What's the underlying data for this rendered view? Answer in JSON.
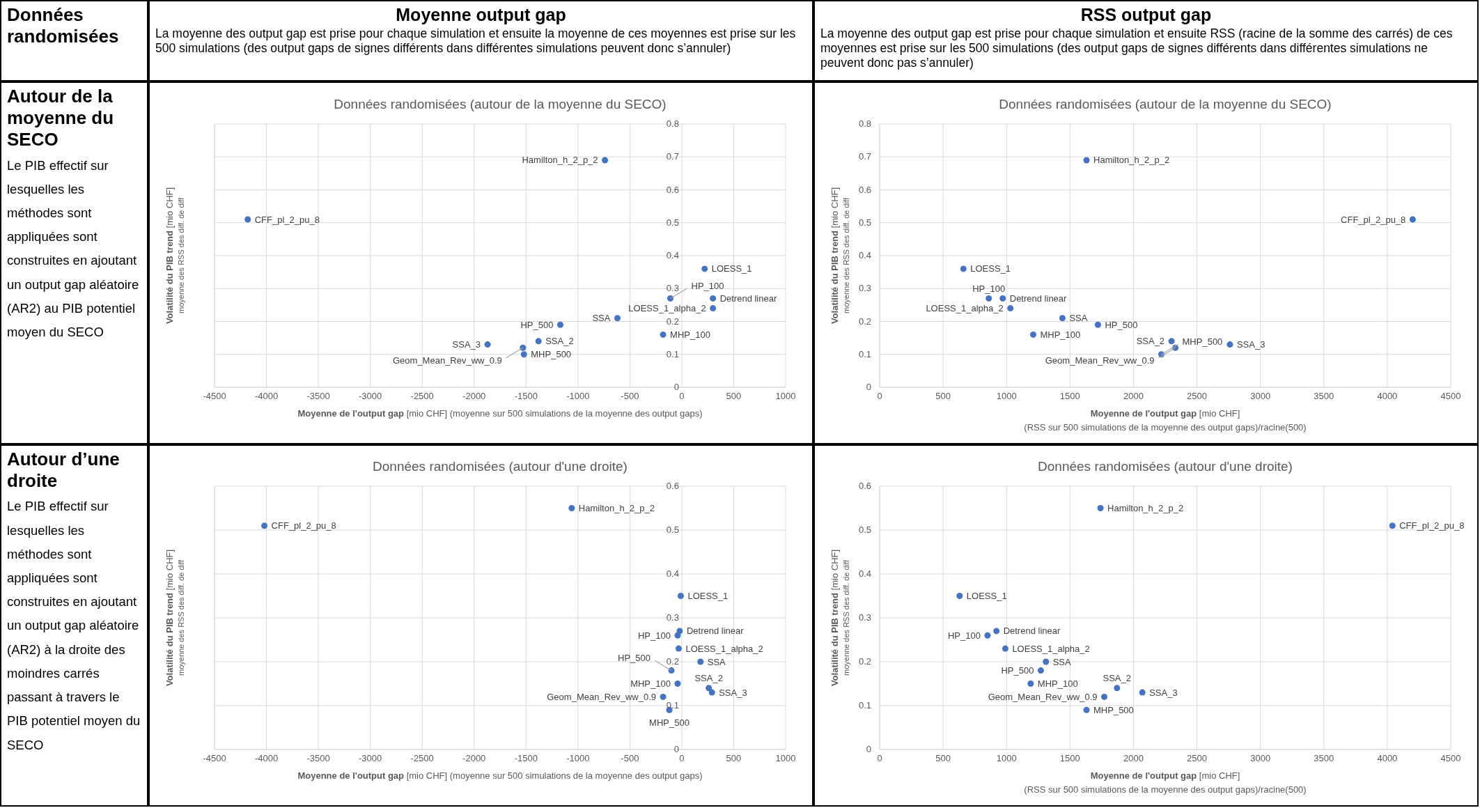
{
  "chart_data": [
    {
      "type": "other",
      "title": "Données randomisées"
    },
    {
      "type": "other",
      "title": "Moyenne output gap",
      "subtitle": "La moyenne des output gap est prise pour chaque simulation et ensuite la moyenne de ces moyennes est prise sur les 500 simulations (des output gaps de signes différents dans différentes simulations peuvent donc s’annuler)"
    },
    {
      "type": "other",
      "title": "RSS output gap",
      "subtitle": "La moyenne des output gap est prise pour chaque simulation et ensuite RSS (racine de la somme des carrés) de ces moyennes est prise sur les 500 simulations (des output gaps de signes différents dans différentes simulations ne peuvent donc pas s’annuler)"
    },
    {
      "type": "other",
      "title": "Autour de la moyenne du SECO",
      "subtitle": "Le PIB effectif sur lesquelles les méthodes sont appliquées sont construites en ajoutant un output gap aléatoire (AR2) au PIB potentiel moyen du SECO"
    },
    {
      "type": "scatter",
      "title": "Données randomisées (autour de la moyenne du SECO)",
      "xlabel": "Moyenne de l'output gap [mio CHF] (moyenne sur 500 simulations de la moyenne des output gaps)",
      "ylabel": "Volatilité du PIB trend [mio CHF]\nmoyenne des RSS des diff. de diff",
      "xlim": [
        -4500,
        1000
      ],
      "xticks": [
        -4500,
        -4000,
        -3500,
        -3000,
        -2500,
        -2000,
        -1500,
        -1000,
        -500,
        0,
        500,
        1000
      ],
      "ylim": [
        0,
        0.8
      ],
      "yticks": [
        0,
        0.1,
        0.2,
        0.3,
        0.4,
        0.5,
        0.6,
        0.7,
        0.8
      ],
      "grid": true,
      "marker": "circle",
      "series": [
        {
          "name": "CFF_pl_2_pu_8",
          "color": "#4472c4",
          "x": [
            -4180
          ],
          "values": [
            0.51
          ]
        },
        {
          "name": "Hamilton_h_2_p_2",
          "color": "#4472c4",
          "x": [
            -740
          ],
          "values": [
            0.69
          ]
        },
        {
          "name": "LOESS_1",
          "color": "#4472c4",
          "x": [
            220
          ],
          "values": [
            0.36
          ]
        },
        {
          "name": "Detrend linear",
          "color": "#4472c4",
          "x": [
            300
          ],
          "values": [
            0.27
          ]
        },
        {
          "name": "LOESS_1_alpha_2",
          "color": "#4472c4",
          "x": [
            300
          ],
          "values": [
            0.24
          ]
        },
        {
          "name": "HP_100",
          "color": "#4472c4",
          "x": [
            -110
          ],
          "values": [
            0.27
          ]
        },
        {
          "name": "MHP_100",
          "color": "#4472c4",
          "x": [
            -180
          ],
          "values": [
            0.16
          ]
        },
        {
          "name": "SSA",
          "color": "#4472c4",
          "x": [
            -620
          ],
          "values": [
            0.21
          ]
        },
        {
          "name": "HP_500",
          "color": "#4472c4",
          "x": [
            -1170
          ],
          "values": [
            0.19
          ]
        },
        {
          "name": "SSA_2",
          "color": "#4472c4",
          "x": [
            -1380
          ],
          "values": [
            0.14
          ]
        },
        {
          "name": "Geom_Mean_Rev_ww_0.9",
          "color": "#4472c4",
          "x": [
            -1530
          ],
          "values": [
            0.12
          ]
        },
        {
          "name": "MHP_500",
          "color": "#4472c4",
          "x": [
            -1520
          ],
          "values": [
            0.1
          ]
        },
        {
          "name": "SSA_3",
          "color": "#4472c4",
          "x": [
            -1870
          ],
          "values": [
            0.13
          ]
        }
      ]
    },
    {
      "type": "scatter",
      "title": "Données randomisées (autour de la moyenne du SECO)",
      "xlabel": "Moyenne de l'output gap [mio CHF]\n(RSS sur 500 simulations de la moyenne des output gaps)/racine(500)",
      "ylabel": "Volatilité du PIB trend [mio CHF]\nmoyenne des RSS des diff. de diff",
      "xlim": [
        0,
        4500
      ],
      "xticks": [
        0,
        500,
        1000,
        1500,
        2000,
        2500,
        3000,
        3500,
        4000,
        4500
      ],
      "ylim": [
        0,
        0.8
      ],
      "yticks": [
        0,
        0.1,
        0.2,
        0.3,
        0.4,
        0.5,
        0.6,
        0.7,
        0.8
      ],
      "grid": true,
      "marker": "circle",
      "series": [
        {
          "name": "CFF_pl_2_pu_8",
          "color": "#4472c4",
          "x": [
            4200
          ],
          "values": [
            0.51
          ]
        },
        {
          "name": "Hamilton_h_2_p_2",
          "color": "#4472c4",
          "x": [
            1630
          ],
          "values": [
            0.69
          ]
        },
        {
          "name": "LOESS_1",
          "color": "#4472c4",
          "x": [
            660
          ],
          "values": [
            0.36
          ]
        },
        {
          "name": "Detrend linear",
          "color": "#4472c4",
          "x": [
            970
          ],
          "values": [
            0.27
          ]
        },
        {
          "name": "LOESS_1_alpha_2",
          "color": "#4472c4",
          "x": [
            1030
          ],
          "values": [
            0.24
          ]
        },
        {
          "name": "HP_100",
          "color": "#4472c4",
          "x": [
            860
          ],
          "values": [
            0.27
          ]
        },
        {
          "name": "MHP_100",
          "color": "#4472c4",
          "x": [
            1210
          ],
          "values": [
            0.16
          ]
        },
        {
          "name": "SSA",
          "color": "#4472c4",
          "x": [
            1440
          ],
          "values": [
            0.21
          ]
        },
        {
          "name": "HP_500",
          "color": "#4472c4",
          "x": [
            1720
          ],
          "values": [
            0.19
          ]
        },
        {
          "name": "SSA_2",
          "color": "#4472c4",
          "x": [
            2300
          ],
          "values": [
            0.14
          ]
        },
        {
          "name": "Geom_Mean_Rev_ww_0.9",
          "color": "#4472c4",
          "x": [
            2330
          ],
          "values": [
            0.12
          ]
        },
        {
          "name": "MHP_500",
          "color": "#4472c4",
          "x": [
            2220
          ],
          "values": [
            0.1
          ]
        },
        {
          "name": "SSA_3",
          "color": "#4472c4",
          "x": [
            2760
          ],
          "values": [
            0.13
          ]
        }
      ]
    },
    {
      "type": "other",
      "title": "Autour d’une droite",
      "subtitle": "Le PIB effectif sur lesquelles les méthodes sont appliquées sont construites en ajoutant un output gap aléatoire (AR2) à la droite des moindres carrés passant à travers le PIB potentiel moyen du SECO"
    },
    {
      "type": "scatter",
      "title": "Données randomisées (autour d'une droite)",
      "xlabel": "Moyenne de l'output gap [mio CHF] (moyenne sur 500 simulations de la moyenne des output gaps)",
      "ylabel": "Volatilité du PIB trend [mio CHF]\nmoyenne des RSS des diff. de diff",
      "xlim": [
        -4500,
        1000
      ],
      "xticks": [
        -4500,
        -4000,
        -3500,
        -3000,
        -2500,
        -2000,
        -1500,
        -1000,
        -500,
        0,
        500,
        1000
      ],
      "ylim": [
        0,
        0.6
      ],
      "yticks": [
        0,
        0.1,
        0.2,
        0.3,
        0.4,
        0.5,
        0.6
      ],
      "grid": true,
      "marker": "circle",
      "series": [
        {
          "name": "CFF_pl_2_pu_8",
          "color": "#4472c4",
          "x": [
            -4020
          ],
          "values": [
            0.51
          ]
        },
        {
          "name": "Hamilton_h_2_p_2",
          "color": "#4472c4",
          "x": [
            -1060
          ],
          "values": [
            0.55
          ]
        },
        {
          "name": "LOESS_1",
          "color": "#4472c4",
          "x": [
            -10
          ],
          "values": [
            0.35
          ]
        },
        {
          "name": "Detrend linear",
          "color": "#4472c4",
          "x": [
            -20
          ],
          "values": [
            0.27
          ]
        },
        {
          "name": "LOESS_1_alpha_2",
          "color": "#4472c4",
          "x": [
            -30
          ],
          "values": [
            0.23
          ]
        },
        {
          "name": "HP_100",
          "color": "#4472c4",
          "x": [
            -40
          ],
          "values": [
            0.26
          ]
        },
        {
          "name": "MHP_100",
          "color": "#4472c4",
          "x": [
            -40
          ],
          "values": [
            0.15
          ]
        },
        {
          "name": "SSA",
          "color": "#4472c4",
          "x": [
            180
          ],
          "values": [
            0.2
          ]
        },
        {
          "name": "HP_500",
          "color": "#4472c4",
          "x": [
            -100
          ],
          "values": [
            0.18
          ]
        },
        {
          "name": "SSA_2",
          "color": "#4472c4",
          "x": [
            260
          ],
          "values": [
            0.14
          ]
        },
        {
          "name": "Geom_Mean_Rev_ww_0.9",
          "color": "#4472c4",
          "x": [
            -180
          ],
          "values": [
            0.12
          ]
        },
        {
          "name": "MHP_500",
          "color": "#4472c4",
          "x": [
            -120
          ],
          "values": [
            0.09
          ]
        },
        {
          "name": "SSA_3",
          "color": "#4472c4",
          "x": [
            290
          ],
          "values": [
            0.13
          ]
        }
      ]
    },
    {
      "type": "scatter",
      "title": "Données randomisées (autour d'une droite)",
      "xlabel": "Moyenne de l'output gap [mio CHF]\n(RSS sur 500 simulations de la moyenne des output gaps)/racine(500)",
      "ylabel": "Volatilité du PIB trend [mio CHF]\nmoyenne des RSS des diff. de diff",
      "xlim": [
        0,
        4500
      ],
      "xticks": [
        0,
        500,
        1000,
        1500,
        2000,
        2500,
        3000,
        3500,
        4000,
        4500
      ],
      "ylim": [
        0,
        0.6
      ],
      "yticks": [
        0,
        0.1,
        0.2,
        0.3,
        0.4,
        0.5,
        0.6
      ],
      "grid": true,
      "marker": "circle",
      "series": [
        {
          "name": "CFF_pl_2_pu_8",
          "color": "#4472c4",
          "x": [
            4040
          ],
          "values": [
            0.51
          ]
        },
        {
          "name": "Hamilton_h_2_p_2",
          "color": "#4472c4",
          "x": [
            1740
          ],
          "values": [
            0.55
          ]
        },
        {
          "name": "LOESS_1",
          "color": "#4472c4",
          "x": [
            630
          ],
          "values": [
            0.35
          ]
        },
        {
          "name": "Detrend linear",
          "color": "#4472c4",
          "x": [
            920
          ],
          "values": [
            0.27
          ]
        },
        {
          "name": "LOESS_1_alpha_2",
          "color": "#4472c4",
          "x": [
            990
          ],
          "values": [
            0.23
          ]
        },
        {
          "name": "HP_100",
          "color": "#4472c4",
          "x": [
            850
          ],
          "values": [
            0.26
          ]
        },
        {
          "name": "MHP_100",
          "color": "#4472c4",
          "x": [
            1190
          ],
          "values": [
            0.15
          ]
        },
        {
          "name": "SSA",
          "color": "#4472c4",
          "x": [
            1310
          ],
          "values": [
            0.2
          ]
        },
        {
          "name": "HP_500",
          "color": "#4472c4",
          "x": [
            1270
          ],
          "values": [
            0.18
          ]
        },
        {
          "name": "SSA_2",
          "color": "#4472c4",
          "x": [
            1870
          ],
          "values": [
            0.14
          ]
        },
        {
          "name": "Geom_Mean_Rev_ww_0.9",
          "color": "#4472c4",
          "x": [
            1770
          ],
          "values": [
            0.12
          ]
        },
        {
          "name": "MHP_500",
          "color": "#4472c4",
          "x": [
            1630
          ],
          "values": [
            0.09
          ]
        },
        {
          "name": "SSA_3",
          "color": "#4472c4",
          "x": [
            2070
          ],
          "values": [
            0.13
          ]
        }
      ]
    }
  ]
}
